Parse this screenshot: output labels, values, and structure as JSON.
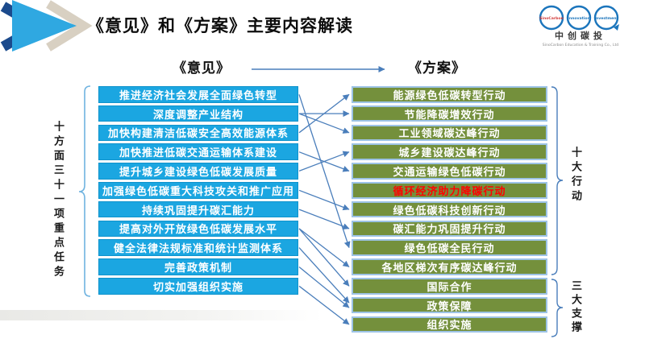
{
  "title": "《意见》和《方案》主要内容解读",
  "opinions": {
    "header": "《意见》",
    "side_label": "十方面三十一项重点任务",
    "items": [
      "推进经济社会发展全面绿色转型",
      "深度调整产业结构",
      "加快构建清洁低碳安全高效能源体系",
      "加快推进低碳交通运输体系建设",
      "提升城乡建设绿色低碳发展质量",
      "加强绿色低碳重大科技攻关和推广应用",
      "持续巩固提升碳汇能力",
      "提高对外开放绿色低碳发展水平",
      "健全法律法规标准和统计监测体系",
      "完善政策机制",
      "切实加强组织实施"
    ]
  },
  "plan": {
    "header": "《方案》",
    "actions_label": "十大行动",
    "supports_label": "三大支撑",
    "items": [
      {
        "text": "能源绿色低碳转型行动",
        "highlight": false
      },
      {
        "text": "节能降碳增效行动",
        "highlight": false
      },
      {
        "text": "工业领域碳达峰行动",
        "highlight": false
      },
      {
        "text": "城乡建设碳达峰行动",
        "highlight": false
      },
      {
        "text": "交通运输绿色低碳行动",
        "highlight": false
      },
      {
        "text": "循环经济助力降碳行动",
        "highlight": true
      },
      {
        "text": "绿色低碳科技创新行动",
        "highlight": false
      },
      {
        "text": "碳汇能力巩固提升行动",
        "highlight": false
      },
      {
        "text": "绿色低碳全民行动",
        "highlight": false
      },
      {
        "text": "各地区梯次有序碳达峰行动",
        "highlight": false
      },
      {
        "text": "国际合作",
        "highlight": false
      },
      {
        "text": "政策保障",
        "highlight": false
      },
      {
        "text": "组织实施",
        "highlight": false
      }
    ]
  },
  "connections": [
    [
      1,
      9
    ],
    [
      2,
      2
    ],
    [
      2,
      3
    ],
    [
      3,
      1
    ],
    [
      4,
      5
    ],
    [
      5,
      4
    ],
    [
      6,
      7
    ],
    [
      7,
      8
    ],
    [
      8,
      10
    ],
    [
      8,
      11
    ],
    [
      9,
      12
    ],
    [
      10,
      12
    ],
    [
      11,
      13
    ]
  ],
  "logo": {
    "rings": [
      "SinoCarbon",
      "Innovation",
      "Investment"
    ],
    "name": "中创碳投",
    "subtitle": "SinoCarbon Education & Training Co., Ltd"
  },
  "colors": {
    "opinion_box": "#1BA6E1",
    "plan_box": "#74903C",
    "plan_box_border": "#9DC3E6",
    "arrow": "#4A7EBB",
    "highlight_text": "#FF0000"
  }
}
